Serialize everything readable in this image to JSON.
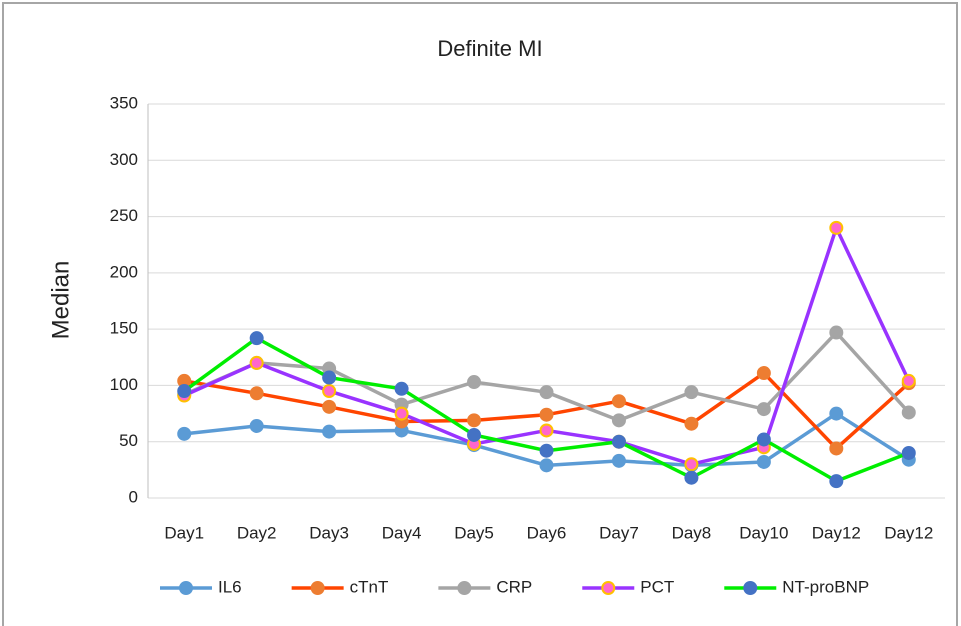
{
  "chart_data": {
    "type": "line",
    "title": "Definite MI",
    "y_label": "Median",
    "categories": [
      "Day1",
      "Day2",
      "Day3",
      "Day4",
      "Day5",
      "Day6",
      "Day7",
      "Day8",
      "Day10",
      "Day12",
      "Day12"
    ],
    "ylim": [
      0,
      350
    ],
    "yticks": [
      0,
      50,
      100,
      150,
      200,
      250,
      300,
      350
    ],
    "grid": true,
    "legend": "bottom",
    "series": [
      {
        "name": "IL6",
        "color": "#5b9bd5",
        "marker_color": "#5b9bd5",
        "marker_edge": "#5b9bd5",
        "values": [
          57,
          64,
          59,
          60,
          47,
          29,
          33,
          29,
          32,
          75,
          34
        ]
      },
      {
        "name": "cTnT",
        "color": "#ff4500",
        "marker_color": "#ed7d31",
        "marker_edge": "#ed7d31",
        "values": [
          104,
          93,
          81,
          68,
          69,
          74,
          86,
          66,
          111,
          44,
          102
        ]
      },
      {
        "name": "CRP",
        "color": "#a5a5a5",
        "marker_color": "#a5a5a5",
        "marker_edge": "#a5a5a5",
        "values": [
          92,
          120,
          115,
          83,
          103,
          94,
          69,
          94,
          79,
          147,
          76
        ]
      },
      {
        "name": "PCT",
        "color": "#9933ff",
        "marker_color": "#ff66cc",
        "marker_edge": "#ffc000",
        "values": [
          91,
          120,
          95,
          75,
          48,
          60,
          50,
          30,
          45,
          240,
          104
        ]
      },
      {
        "name": "NT-proBNP",
        "color": "#00ee00",
        "marker_color": "#4472c4",
        "marker_edge": "#4472c4",
        "values": [
          95,
          142,
          107,
          97,
          56,
          42,
          50,
          18,
          52,
          15,
          40
        ]
      }
    ]
  }
}
